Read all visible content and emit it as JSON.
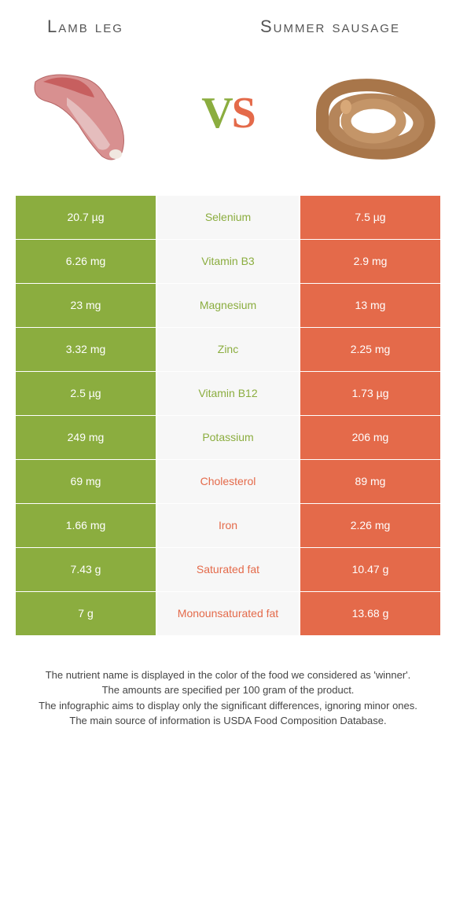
{
  "left_name": "Lamb leg",
  "right_name": "Summer sausage",
  "vs_left_char": "V",
  "vs_right_char": "S",
  "colors": {
    "left": "#8bad3f",
    "right": "#e46a4a",
    "mid_bg": "#f7f7f7",
    "page_bg": "#ffffff",
    "footer_text": "#444444"
  },
  "rows": [
    {
      "left": "20.7 µg",
      "nutrient": "Selenium",
      "right": "7.5 µg",
      "winner": "left"
    },
    {
      "left": "6.26 mg",
      "nutrient": "Vitamin B3",
      "right": "2.9 mg",
      "winner": "left"
    },
    {
      "left": "23 mg",
      "nutrient": "Magnesium",
      "right": "13 mg",
      "winner": "left"
    },
    {
      "left": "3.32 mg",
      "nutrient": "Zinc",
      "right": "2.25 mg",
      "winner": "left"
    },
    {
      "left": "2.5 µg",
      "nutrient": "Vitamin B12",
      "right": "1.73 µg",
      "winner": "left"
    },
    {
      "left": "249 mg",
      "nutrient": "Potassium",
      "right": "206 mg",
      "winner": "left"
    },
    {
      "left": "69 mg",
      "nutrient": "Cholesterol",
      "right": "89 mg",
      "winner": "right"
    },
    {
      "left": "1.66 mg",
      "nutrient": "Iron",
      "right": "2.26 mg",
      "winner": "right"
    },
    {
      "left": "7.43 g",
      "nutrient": "Saturated fat",
      "right": "10.47 g",
      "winner": "right"
    },
    {
      "left": "7 g",
      "nutrient": "Monounsaturated fat",
      "right": "13.68 g",
      "winner": "right"
    }
  ],
  "footer_lines": [
    "The nutrient name is displayed in the color of the food we considered as 'winner'.",
    "The amounts are specified per 100 gram of the product.",
    "The infographic aims to display only the significant differences, ignoring minor ones.",
    "The main source of information is USDA Food Composition Database."
  ]
}
